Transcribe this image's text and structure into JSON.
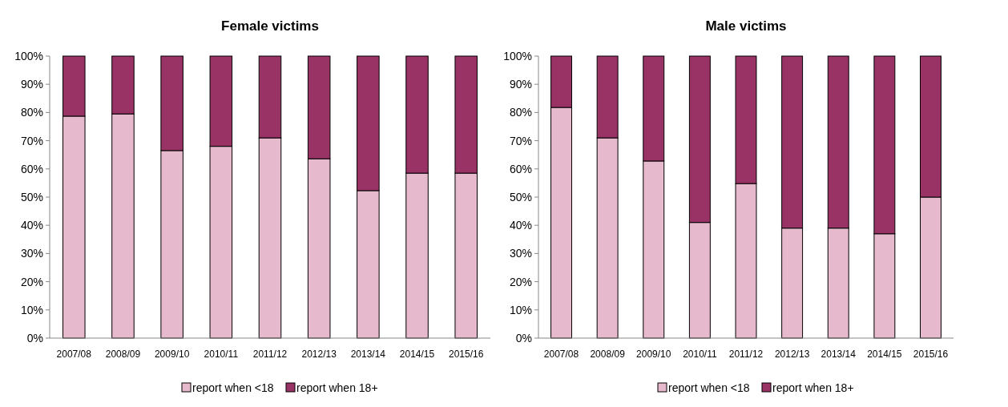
{
  "chart_data": [
    {
      "type": "bar",
      "title": "Female victims",
      "stacked": true,
      "categories": [
        "2007/08",
        "2008/09",
        "2009/10",
        "2010/11",
        "2011/12",
        "2012/13",
        "2013/14",
        "2014/15",
        "2015/16"
      ],
      "series": [
        {
          "name": "report when <18",
          "color": "#e6b9cc",
          "values": [
            78.7,
            79.5,
            66.5,
            68,
            71,
            63.6,
            52.3,
            58.5,
            58.5
          ]
        },
        {
          "name": "report when 18+",
          "color": "#993366",
          "values": [
            21.3,
            20.5,
            33.5,
            32,
            29,
            36.4,
            47.7,
            41.5,
            41.5
          ]
        }
      ],
      "ylim": [
        0,
        100
      ],
      "yticks": [
        {
          "value": 0,
          "label": "0%"
        },
        {
          "value": 10,
          "label": "10%"
        },
        {
          "value": 20,
          "label": "20%"
        },
        {
          "value": 30,
          "label": "30%"
        },
        {
          "value": 40,
          "label": "40%"
        },
        {
          "value": 50,
          "label": "50%"
        },
        {
          "value": 60,
          "label": "60%"
        },
        {
          "value": 70,
          "label": "70%"
        },
        {
          "value": 80,
          "label": "80%"
        },
        {
          "value": 90,
          "label": "90%"
        },
        {
          "value": 100,
          "label": "100%"
        }
      ],
      "grid": false,
      "legend": "bottom"
    },
    {
      "type": "bar",
      "title": "Male victims",
      "stacked": true,
      "categories": [
        "2007/08",
        "2008/09",
        "2009/10",
        "2010/11",
        "2011/12",
        "2012/13",
        "2013/14",
        "2014/15",
        "2015/16"
      ],
      "series": [
        {
          "name": "report when <18",
          "color": "#e6b9cc",
          "values": [
            81.8,
            71,
            62.8,
            41,
            54.8,
            39,
            39,
            37,
            50
          ]
        },
        {
          "name": "report when 18+",
          "color": "#993366",
          "values": [
            18.2,
            29,
            37.2,
            59,
            45.2,
            61,
            61,
            63,
            50
          ]
        }
      ],
      "ylim": [
        0,
        100
      ],
      "yticks": [
        {
          "value": 0,
          "label": "0%"
        },
        {
          "value": 10,
          "label": "10%"
        },
        {
          "value": 20,
          "label": "20%"
        },
        {
          "value": 30,
          "label": "30%"
        },
        {
          "value": 40,
          "label": "40%"
        },
        {
          "value": 50,
          "label": "50%"
        },
        {
          "value": 60,
          "label": "60%"
        },
        {
          "value": 70,
          "label": "70%"
        },
        {
          "value": 80,
          "label": "80%"
        },
        {
          "value": 90,
          "label": "90%"
        },
        {
          "value": 100,
          "label": "100%"
        }
      ],
      "grid": false,
      "legend": "bottom"
    }
  ]
}
